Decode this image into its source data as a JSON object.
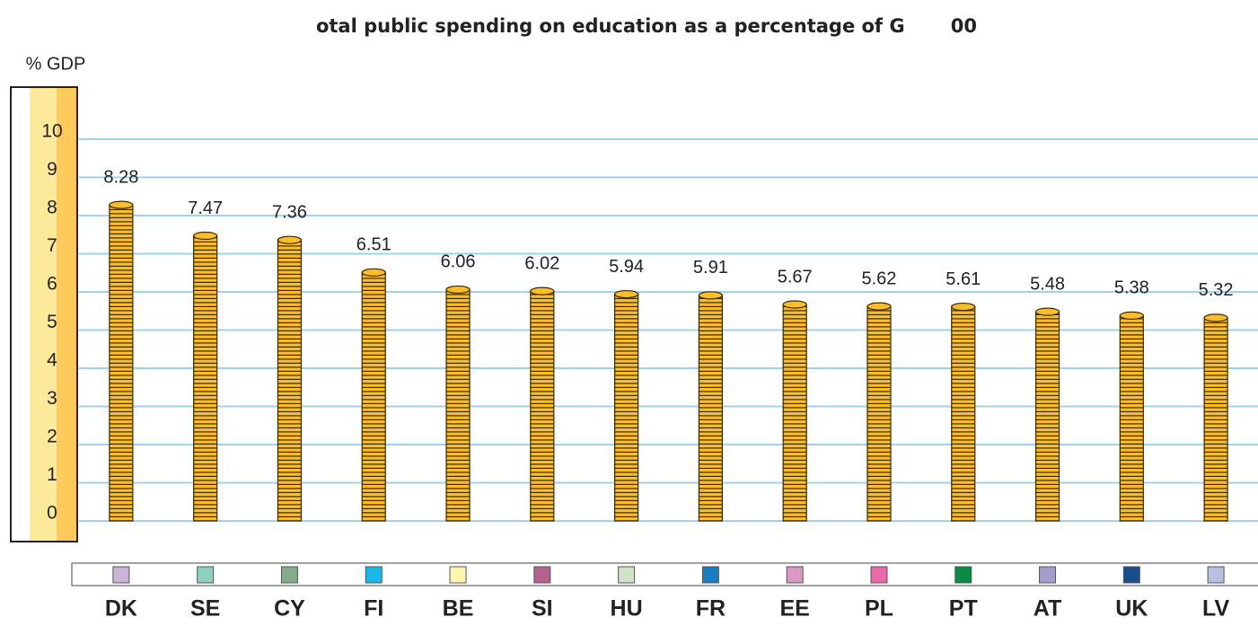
{
  "chart_data": {
    "type": "bar",
    "title": "otal public spending on education as a percentage of G       00",
    "y_label": "% GDP",
    "categories": [
      "DK",
      "SE",
      "CY",
      "FI",
      "BE",
      "SI",
      "HU",
      "FR",
      "EE",
      "PL",
      "PT",
      "AT",
      "UK",
      "LV"
    ],
    "values": [
      8.28,
      7.47,
      7.36,
      6.51,
      6.06,
      6.02,
      5.94,
      5.91,
      5.67,
      5.62,
      5.61,
      5.48,
      5.38,
      5.32
    ],
    "color": "#fbbd2a",
    "category_colors": [
      "#c9b3d9",
      "#8ecfc0",
      "#86a98a",
      "#1bb7e8",
      "#fdf6b0",
      "#b5638e",
      "#cfe3c8",
      "#1a7cc2",
      "#d998c4",
      "#e86aa6",
      "#0a8a43",
      "#a79bcb",
      "#1a4c8a",
      "#b9bfe0"
    ],
    "ylim": [
      0,
      10
    ],
    "yticks": [
      0,
      1,
      2,
      3,
      4,
      5,
      6,
      7,
      8,
      9,
      10
    ],
    "grid": true
  }
}
